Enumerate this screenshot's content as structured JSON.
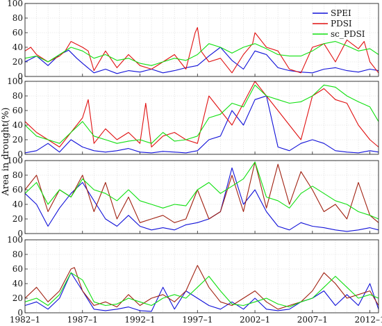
{
  "chart_data": [
    {
      "type": "line",
      "panel": 1,
      "ylim": [
        0,
        100
      ],
      "yticks": [
        0,
        20,
        40,
        60,
        80,
        100
      ],
      "legend": {
        "position": "top-right",
        "entries": [
          "SPEI",
          "PDSI",
          "sc_PDSI"
        ]
      },
      "series": [
        {
          "name": "SPEI",
          "color": "#1010d8",
          "x": [
            1982.0,
            1983.0,
            1984.0,
            1985.0,
            1985.8,
            1986.5,
            1987.0,
            1988.0,
            1989.0,
            1990.0,
            1991.0,
            1992.0,
            1993.0,
            1994.0,
            1995.0,
            1996.0,
            1997.0,
            1998.0,
            1999.0,
            2000.0,
            2001.0,
            2002.0,
            2003.0,
            2004.0,
            2005.0,
            2006.0,
            2007.0,
            2008.0,
            2009.0,
            2010.0,
            2011.0,
            2012.0,
            2012.75
          ],
          "y": [
            20,
            28,
            15,
            30,
            36,
            25,
            18,
            5,
            10,
            4,
            8,
            6,
            10,
            5,
            8,
            12,
            15,
            28,
            40,
            22,
            10,
            35,
            30,
            12,
            8,
            6,
            5,
            10,
            12,
            8,
            6,
            10,
            8
          ]
        },
        {
          "name": "PDSI",
          "color": "#e01010",
          "x": [
            1982.0,
            1982.5,
            1983.0,
            1984.0,
            1985.0,
            1985.5,
            1986.0,
            1987.0,
            1987.5,
            1988.0,
            1989.0,
            1990.0,
            1991.0,
            1992.0,
            1993.0,
            1994.0,
            1995.0,
            1996.0,
            1996.8,
            1997.0,
            1997.3,
            1998.0,
            1999.0,
            2000.0,
            2001.0,
            2001.8,
            2002.0,
            2003.0,
            2004.0,
            2005.0,
            2006.0,
            2007.0,
            2008.0,
            2009.0,
            2010.0,
            2011.0,
            2011.5,
            2012.0,
            2012.75
          ],
          "y": [
            35,
            40,
            30,
            20,
            28,
            35,
            48,
            40,
            35,
            8,
            35,
            12,
            30,
            15,
            10,
            20,
            30,
            10,
            60,
            67,
            35,
            20,
            25,
            5,
            30,
            45,
            60,
            40,
            35,
            10,
            5,
            40,
            45,
            20,
            50,
            38,
            48,
            20,
            5
          ]
        },
        {
          "name": "sc_PDSI",
          "color": "#10e010",
          "x": [
            1982.0,
            1983.0,
            1984.0,
            1985.0,
            1986.0,
            1987.0,
            1988.0,
            1989.0,
            1990.0,
            1991.0,
            1992.0,
            1993.0,
            1994.0,
            1995.0,
            1996.0,
            1997.0,
            1998.0,
            1999.0,
            2000.0,
            2001.0,
            2002.0,
            2003.0,
            2004.0,
            2005.0,
            2006.0,
            2007.0,
            2008.0,
            2009.0,
            2010.0,
            2011.0,
            2012.0,
            2012.75
          ],
          "y": [
            25,
            28,
            20,
            30,
            40,
            35,
            25,
            30,
            22,
            25,
            18,
            15,
            20,
            25,
            22,
            30,
            45,
            40,
            32,
            40,
            45,
            38,
            30,
            28,
            28,
            35,
            45,
            48,
            42,
            35,
            38,
            30
          ]
        }
      ]
    },
    {
      "type": "line",
      "panel": 2,
      "ylabel": "Area in drought(%)",
      "ylim": [
        0,
        100
      ],
      "yticks": [
        0,
        20,
        40,
        60,
        80,
        100
      ],
      "series": [
        {
          "name": "SPEI",
          "color": "#1010d8",
          "x": [
            1982.0,
            1983.0,
            1984.0,
            1985.0,
            1986.0,
            1987.0,
            1988.0,
            1989.0,
            1990.0,
            1991.0,
            1992.0,
            1993.0,
            1994.0,
            1995.0,
            1996.0,
            1997.0,
            1998.0,
            1999.0,
            2000.0,
            2001.0,
            2002.0,
            2003.0,
            2004.0,
            2005.0,
            2006.0,
            2007.0,
            2008.0,
            2009.0,
            2010.0,
            2011.0,
            2012.0,
            2012.75
          ],
          "y": [
            2,
            5,
            15,
            3,
            20,
            10,
            5,
            3,
            5,
            8,
            3,
            2,
            4,
            3,
            2,
            5,
            20,
            25,
            60,
            40,
            75,
            80,
            10,
            5,
            15,
            20,
            15,
            5,
            3,
            2,
            5,
            3
          ]
        },
        {
          "name": "PDSI",
          "color": "#e01010",
          "x": [
            1982.0,
            1983.0,
            1984.0,
            1985.0,
            1986.0,
            1987.0,
            1987.5,
            1988.0,
            1989.0,
            1990.0,
            1991.0,
            1992.0,
            1992.5,
            1993.0,
            1994.0,
            1995.0,
            1996.0,
            1997.0,
            1998.0,
            1999.0,
            2000.0,
            2001.0,
            2002.0,
            2003.0,
            2004.0,
            2005.0,
            2006.0,
            2007.0,
            2008.0,
            2009.0,
            2010.0,
            2011.0,
            2012.0,
            2012.75
          ],
          "y": [
            45,
            30,
            20,
            10,
            30,
            50,
            75,
            15,
            35,
            20,
            30,
            15,
            70,
            10,
            25,
            30,
            20,
            15,
            80,
            60,
            40,
            70,
            100,
            80,
            60,
            40,
            20,
            80,
            90,
            75,
            70,
            40,
            20,
            10
          ]
        },
        {
          "name": "sc_PDSI",
          "color": "#10e010",
          "x": [
            1982.0,
            1983.0,
            1984.0,
            1985.0,
            1986.0,
            1987.0,
            1988.0,
            1989.0,
            1990.0,
            1991.0,
            1992.0,
            1993.0,
            1994.0,
            1995.0,
            1996.0,
            1997.0,
            1998.0,
            1999.0,
            2000.0,
            2001.0,
            2002.0,
            2003.0,
            2004.0,
            2005.0,
            2006.0,
            2007.0,
            2008.0,
            2009.0,
            2010.0,
            2011.0,
            2012.0,
            2012.75
          ],
          "y": [
            40,
            25,
            20,
            15,
            30,
            45,
            25,
            20,
            15,
            18,
            20,
            15,
            30,
            18,
            20,
            25,
            50,
            55,
            70,
            65,
            95,
            80,
            75,
            70,
            72,
            80,
            95,
            92,
            80,
            72,
            65,
            45
          ]
        }
      ]
    },
    {
      "type": "line",
      "panel": 3,
      "ylim": [
        0,
        100
      ],
      "yticks": [
        0,
        20,
        40,
        60,
        80,
        100
      ],
      "series": [
        {
          "name": "SPEI",
          "color": "#1010d8",
          "x": [
            1982.0,
            1983.0,
            1984.0,
            1985.0,
            1986.0,
            1987.0,
            1988.0,
            1989.0,
            1990.0,
            1991.0,
            1992.0,
            1993.0,
            1994.0,
            1995.0,
            1996.0,
            1997.0,
            1998.0,
            1999.0,
            2000.0,
            2001.0,
            2002.0,
            2003.0,
            2004.0,
            2005.0,
            2006.0,
            2007.0,
            2008.0,
            2009.0,
            2010.0,
            2011.0,
            2012.0,
            2012.75
          ],
          "y": [
            55,
            40,
            10,
            35,
            55,
            70,
            45,
            20,
            10,
            25,
            10,
            5,
            8,
            5,
            12,
            15,
            20,
            30,
            90,
            40,
            60,
            30,
            10,
            5,
            15,
            10,
            8,
            5,
            3,
            5,
            8,
            5
          ]
        },
        {
          "name": "PDSI",
          "color": "#a02010",
          "x": [
            1982.0,
            1983.0,
            1984.0,
            1985.0,
            1986.0,
            1987.0,
            1988.0,
            1989.0,
            1990.0,
            1991.0,
            1992.0,
            1993.0,
            1994.0,
            1995.0,
            1996.0,
            1997.0,
            1998.0,
            1999.0,
            2000.0,
            2001.0,
            2002.0,
            2003.0,
            2004.0,
            2005.0,
            2006.0,
            2007.0,
            2008.0,
            2009.0,
            2010.0,
            2011.0,
            2012.0,
            2012.75
          ],
          "y": [
            60,
            80,
            30,
            60,
            50,
            80,
            30,
            70,
            20,
            50,
            15,
            20,
            25,
            15,
            20,
            60,
            20,
            30,
            80,
            30,
            98,
            35,
            95,
            40,
            85,
            60,
            30,
            40,
            20,
            70,
            25,
            15
          ]
        },
        {
          "name": "sc_PDSI",
          "color": "#10e010",
          "x": [
            1982.0,
            1983.0,
            1984.0,
            1985.0,
            1986.0,
            1987.0,
            1988.0,
            1989.0,
            1990.0,
            1991.0,
            1992.0,
            1993.0,
            1994.0,
            1995.0,
            1996.0,
            1997.0,
            1998.0,
            1999.0,
            2000.0,
            2001.0,
            2002.0,
            2003.0,
            2004.0,
            2005.0,
            2006.0,
            2007.0,
            2008.0,
            2009.0,
            2010.0,
            2011.0,
            2012.0,
            2012.75
          ],
          "y": [
            55,
            70,
            40,
            60,
            50,
            75,
            60,
            55,
            45,
            60,
            45,
            40,
            35,
            40,
            38,
            60,
            70,
            55,
            65,
            75,
            98,
            50,
            45,
            35,
            55,
            65,
            55,
            45,
            40,
            30,
            25,
            20
          ]
        }
      ]
    },
    {
      "type": "line",
      "panel": 4,
      "ylim": [
        0,
        100
      ],
      "yticks": [
        0,
        20,
        40,
        60,
        80,
        100
      ],
      "series": [
        {
          "name": "SPEI",
          "color": "#1010d8",
          "x": [
            1982.0,
            1983.0,
            1984.0,
            1985.0,
            1986.0,
            1987.0,
            1988.0,
            1989.0,
            1990.0,
            1991.0,
            1992.0,
            1993.0,
            1994.0,
            1995.0,
            1996.0,
            1997.0,
            1998.0,
            1999.0,
            2000.0,
            2001.0,
            2002.0,
            2003.0,
            2004.0,
            2005.0,
            2006.0,
            2007.0,
            2008.0,
            2009.0,
            2010.0,
            2011.0,
            2012.0,
            2012.75
          ],
          "y": [
            10,
            15,
            5,
            20,
            55,
            30,
            5,
            3,
            5,
            8,
            3,
            2,
            35,
            5,
            30,
            20,
            10,
            5,
            15,
            5,
            20,
            5,
            3,
            5,
            15,
            20,
            30,
            10,
            25,
            10,
            40,
            5
          ]
        },
        {
          "name": "PDSI",
          "color": "#a02010",
          "x": [
            1982.0,
            1983.0,
            1984.0,
            1985.0,
            1986.0,
            1986.3,
            1987.0,
            1988.0,
            1989.0,
            1990.0,
            1991.0,
            1992.0,
            1993.0,
            1994.0,
            1995.0,
            1996.0,
            1997.0,
            1998.0,
            1999.0,
            2000.0,
            2001.0,
            2002.0,
            2003.0,
            2004.0,
            2005.0,
            2006.0,
            2007.0,
            2008.0,
            2009.0,
            2010.0,
            2011.0,
            2012.0,
            2012.75
          ],
          "y": [
            20,
            35,
            15,
            30,
            60,
            62,
            30,
            10,
            15,
            8,
            25,
            10,
            20,
            25,
            15,
            30,
            65,
            35,
            15,
            10,
            20,
            30,
            15,
            5,
            10,
            15,
            30,
            55,
            40,
            20,
            25,
            30,
            10
          ]
        },
        {
          "name": "sc_PDSI",
          "color": "#10e010",
          "x": [
            1982.0,
            1983.0,
            1984.0,
            1985.0,
            1986.0,
            1987.0,
            1988.0,
            1989.0,
            1990.0,
            1991.0,
            1992.0,
            1993.0,
            1994.0,
            1995.0,
            1996.0,
            1997.0,
            1998.0,
            1999.0,
            2000.0,
            2001.0,
            2002.0,
            2003.0,
            2004.0,
            2005.0,
            2006.0,
            2007.0,
            2008.0,
            2009.0,
            2010.0,
            2011.0,
            2012.0,
            2012.75
          ],
          "y": [
            15,
            20,
            10,
            25,
            55,
            45,
            15,
            10,
            12,
            20,
            15,
            10,
            20,
            25,
            20,
            35,
            50,
            30,
            12,
            10,
            15,
            20,
            12,
            8,
            15,
            20,
            35,
            50,
            35,
            20,
            25,
            20
          ]
        }
      ]
    }
  ],
  "x_axis": {
    "range": [
      1982.0,
      2012.75
    ],
    "tick_labels": [
      "1982–1",
      "1987–1",
      "1992–1",
      "1997–1",
      "2002–1",
      "2007–1",
      "2012–1"
    ],
    "tick_values": [
      1982,
      1987,
      1992,
      1997,
      2002,
      2007,
      2012
    ]
  },
  "grid": true,
  "colors": {
    "spei": "#1010d8",
    "pdsi": "#e01010",
    "sc_pdsi": "#10e010",
    "grid": "#dcdcdc",
    "axis": "#222222"
  }
}
